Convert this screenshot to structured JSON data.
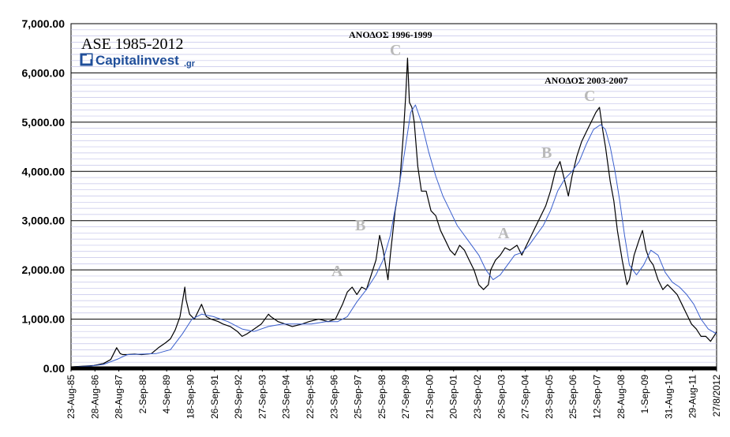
{
  "brand": {
    "title": "ASE 1985-2012",
    "logo_main": "Capitalinvest",
    "logo_suffix": ".gr",
    "logo_color": "#1f4e9a"
  },
  "chart_data": {
    "type": "line",
    "ylim": [
      0,
      7000
    ],
    "y_ticks": [
      0,
      1000,
      2000,
      3000,
      4000,
      5000,
      6000,
      7000
    ],
    "y_tick_labels": [
      "0.00",
      "1,000.00",
      "2,000.00",
      "3,000.00",
      "4,000.00",
      "5,000.00",
      "6,000.00",
      "7,000.00"
    ],
    "x_tick_labels": [
      "23-Aug-85",
      "28-Aug-86",
      "28-Aug-87",
      "2-Sep-88",
      "4-Sep-89",
      "18-Sep-90",
      "26-Sep-91",
      "29-Sep-92",
      "27-Sep-93",
      "23-Sep-94",
      "22-Sep-95",
      "23-Sep-96",
      "25-Sep-97",
      "25-Sep-98",
      "27-Sep-99",
      "21-Sep-00",
      "20-Sep-01",
      "23-Sep-02",
      "26-Sep-03",
      "27-Sep-04",
      "23-Sep-05",
      "25-Sep-06",
      "12-Sep-07",
      "28-Aug-08",
      "1-Sep-09",
      "31-Aug-10",
      "29-Aug-11",
      "27/8/2012"
    ],
    "grid": true,
    "series": [
      {
        "kind": "index",
        "color": "#000000",
        "x": [
          1985.64,
          1986.0,
          1986.6,
          1987.0,
          1987.3,
          1987.55,
          1987.7,
          1987.8,
          1988.0,
          1988.3,
          1988.6,
          1989.0,
          1989.3,
          1989.6,
          1989.8,
          1990.0,
          1990.2,
          1990.4,
          1990.45,
          1990.6,
          1990.8,
          1991.0,
          1991.1,
          1991.3,
          1991.5,
          1991.8,
          1992.0,
          1992.3,
          1992.6,
          1992.8,
          1993.0,
          1993.3,
          1993.6,
          1993.9,
          1994.0,
          1994.3,
          1994.6,
          1994.9,
          1995.3,
          1995.6,
          1996.0,
          1996.4,
          1996.7,
          1997.0,
          1997.2,
          1997.4,
          1997.6,
          1997.8,
          1998.0,
          1998.2,
          1998.4,
          1998.55,
          1998.7,
          1998.9,
          1999.0,
          1999.2,
          1999.4,
          1999.55,
          1999.65,
          1999.72,
          1999.8,
          1999.9,
          2000.0,
          2000.15,
          2000.3,
          2000.5,
          2000.7,
          2000.9,
          2001.1,
          2001.3,
          2001.5,
          2001.7,
          2001.9,
          2002.1,
          2002.3,
          2002.5,
          2002.7,
          2002.9,
          2003.1,
          2003.2,
          2003.4,
          2003.6,
          2003.8,
          2004.0,
          2004.3,
          2004.5,
          2004.7,
          2004.9,
          2005.1,
          2005.3,
          2005.5,
          2005.7,
          2005.9,
          2006.1,
          2006.3,
          2006.45,
          2006.6,
          2006.8,
          2007.0,
          2007.2,
          2007.4,
          2007.6,
          2007.75,
          2007.9,
          2008.0,
          2008.2,
          2008.35,
          2008.5,
          2008.7,
          2008.9,
          2009.0,
          2009.2,
          2009.4,
          2009.55,
          2009.7,
          2009.85,
          2010.0,
          2010.2,
          2010.4,
          2010.6,
          2010.8,
          2011.0,
          2011.2,
          2011.4,
          2011.6,
          2011.8,
          2012.0,
          2012.2,
          2012.4,
          2012.6,
          2012.65
        ],
        "values": [
          30,
          40,
          60,
          100,
          180,
          420,
          300,
          280,
          280,
          290,
          280,
          300,
          420,
          520,
          600,
          780,
          1050,
          1650,
          1400,
          1100,
          1000,
          1200,
          1300,
          1050,
          1000,
          950,
          900,
          850,
          750,
          650,
          700,
          800,
          900,
          1100,
          1050,
          950,
          900,
          850,
          900,
          950,
          1000,
          950,
          1000,
          1300,
          1550,
          1650,
          1500,
          1650,
          1600,
          1900,
          2200,
          2700,
          2400,
          1800,
          2300,
          3200,
          3800,
          4800,
          5600,
          6300,
          5400,
          5300,
          5000,
          4100,
          3600,
          3600,
          3200,
          3100,
          2800,
          2600,
          2400,
          2300,
          2500,
          2400,
          2200,
          2000,
          1700,
          1600,
          1700,
          2000,
          2200,
          2300,
          2450,
          2400,
          2500,
          2300,
          2500,
          2700,
          2900,
          3100,
          3300,
          3600,
          4000,
          4200,
          3800,
          3500,
          3900,
          4300,
          4600,
          4800,
          5000,
          5200,
          5300,
          4800,
          4500,
          3800,
          3400,
          2800,
          2200,
          1700,
          1800,
          2300,
          2600,
          2800,
          2400,
          2200,
          2100,
          1800,
          1600,
          1700,
          1600,
          1500,
          1300,
          1100,
          900,
          800,
          650,
          650,
          550,
          700,
          750
        ]
      },
      {
        "kind": "moving-average",
        "color": "#3a5fcd",
        "x": [
          1985.64,
          1986.5,
          1987.0,
          1987.6,
          1988.0,
          1988.6,
          1989.2,
          1989.8,
          1990.3,
          1990.7,
          1991.1,
          1991.6,
          1992.2,
          1992.8,
          1993.3,
          1993.9,
          1994.5,
          1995.1,
          1995.7,
          1996.3,
          1996.8,
          1997.2,
          1997.6,
          1998.0,
          1998.4,
          1998.7,
          1999.0,
          1999.3,
          1999.6,
          1999.85,
          2000.05,
          2000.3,
          2000.6,
          2000.9,
          2001.2,
          2001.5,
          2001.8,
          2002.1,
          2002.4,
          2002.7,
          2003.0,
          2003.3,
          2003.6,
          2003.9,
          2004.2,
          2004.5,
          2004.8,
          2005.1,
          2005.4,
          2005.7,
          2006.0,
          2006.3,
          2006.6,
          2006.9,
          2007.2,
          2007.5,
          2007.8,
          2008.0,
          2008.2,
          2008.4,
          2008.6,
          2008.8,
          2009.0,
          2009.3,
          2009.6,
          2009.9,
          2010.2,
          2010.5,
          2010.8,
          2011.1,
          2011.4,
          2011.7,
          2012.0,
          2012.3,
          2012.65
        ],
        "values": [
          30,
          50,
          80,
          190,
          280,
          290,
          300,
          380,
          700,
          1000,
          1100,
          1050,
          950,
          800,
          750,
          850,
          900,
          900,
          900,
          950,
          950,
          1050,
          1350,
          1600,
          1900,
          2200,
          2700,
          3500,
          4400,
          5200,
          5350,
          5000,
          4400,
          3900,
          3500,
          3200,
          2900,
          2700,
          2500,
          2300,
          2000,
          1800,
          1900,
          2100,
          2300,
          2350,
          2500,
          2700,
          2900,
          3200,
          3600,
          3850,
          4000,
          4200,
          4550,
          4850,
          4950,
          4850,
          4500,
          4000,
          3400,
          2700,
          2100,
          1900,
          2100,
          2400,
          2300,
          1950,
          1750,
          1650,
          1500,
          1300,
          1000,
          800,
          700
        ]
      }
    ],
    "annotations": {
      "titles": [
        "ΑΝΟΔΟΣ 1996-1999",
        "ΑΝΟΔΟΣ 2003-2007"
      ],
      "wave_labels": [
        "A",
        "B",
        "C",
        "A",
        "B",
        "C"
      ]
    }
  }
}
